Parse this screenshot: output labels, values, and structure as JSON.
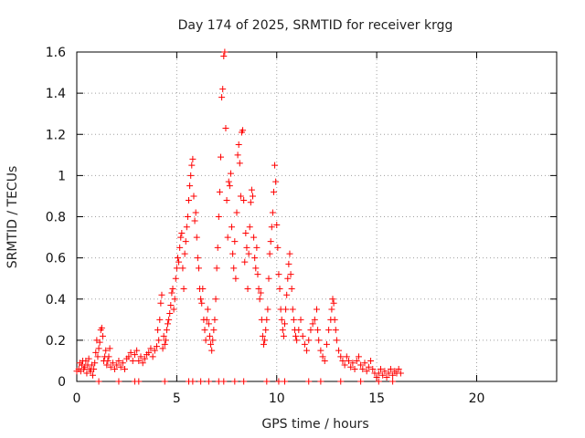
{
  "chart_data": {
    "type": "scatter",
    "title": "Day 174 of 2025, SRMTID for receiver krgg",
    "xlabel": "GPS time / hours",
    "ylabel": "SRMTID / TECUs",
    "xlim": [
      0,
      24
    ],
    "ylim": [
      0,
      1.6
    ],
    "xticks": [
      0,
      5,
      10,
      15,
      20
    ],
    "yticks": [
      0,
      0.2,
      0.4,
      0.6,
      0.8,
      1,
      1.2,
      1.4,
      1.6
    ],
    "xtick_labels": [
      "0",
      "5",
      "10",
      "15",
      "20"
    ],
    "ytick_labels": [
      "0",
      "0.2",
      "0.4",
      "0.6",
      "0.8",
      "1",
      "1.2",
      "1.4",
      "1.6"
    ],
    "grid": true,
    "marker": "+",
    "marker_color": "#ff0000",
    "series": [
      {
        "name": "SRMTID",
        "points": [
          [
            0.0,
            0.05
          ],
          [
            0.1,
            0.06
          ],
          [
            0.15,
            0.09
          ],
          [
            0.2,
            0.05
          ],
          [
            0.25,
            0.08
          ],
          [
            0.3,
            0.1
          ],
          [
            0.35,
            0.06
          ],
          [
            0.4,
            0.07
          ],
          [
            0.45,
            0.1
          ],
          [
            0.5,
            0.04
          ],
          [
            0.55,
            0.08
          ],
          [
            0.6,
            0.11
          ],
          [
            0.65,
            0.06
          ],
          [
            0.7,
            0.05
          ],
          [
            0.75,
            0.08
          ],
          [
            0.8,
            0.03
          ],
          [
            0.85,
            0.06
          ],
          [
            0.9,
            0.09
          ],
          [
            0.95,
            0.14
          ],
          [
            1.0,
            0.2
          ],
          [
            1.05,
            0.12
          ],
          [
            1.1,
            0.16
          ],
          [
            1.15,
            0.19
          ],
          [
            1.2,
            0.25
          ],
          [
            1.25,
            0.26
          ],
          [
            1.3,
            0.22
          ],
          [
            1.35,
            0.1
          ],
          [
            1.4,
            0.12
          ],
          [
            1.45,
            0.15
          ],
          [
            1.5,
            0.08
          ],
          [
            1.55,
            0.1
          ],
          [
            1.6,
            0.12
          ],
          [
            1.65,
            0.16
          ],
          [
            1.7,
            0.07
          ],
          [
            1.8,
            0.09
          ],
          [
            1.9,
            0.06
          ],
          [
            2.0,
            0.08
          ],
          [
            2.1,
            0.1
          ],
          [
            2.2,
            0.07
          ],
          [
            2.3,
            0.09
          ],
          [
            2.4,
            0.06
          ],
          [
            2.5,
            0.11
          ],
          [
            2.6,
            0.12
          ],
          [
            2.7,
            0.14
          ],
          [
            2.8,
            0.1
          ],
          [
            2.9,
            0.13
          ],
          [
            3.0,
            0.15
          ],
          [
            3.1,
            0.1
          ],
          [
            3.2,
            0.12
          ],
          [
            3.3,
            0.09
          ],
          [
            3.4,
            0.11
          ],
          [
            3.5,
            0.13
          ],
          [
            3.6,
            0.14
          ],
          [
            3.7,
            0.16
          ],
          [
            3.8,
            0.12
          ],
          [
            3.9,
            0.15
          ],
          [
            4.0,
            0.17
          ],
          [
            4.05,
            0.25
          ],
          [
            4.1,
            0.2
          ],
          [
            4.15,
            0.3
          ],
          [
            4.2,
            0.38
          ],
          [
            4.25,
            0.42
          ],
          [
            4.3,
            0.16
          ],
          [
            4.35,
            0.22
          ],
          [
            4.4,
            0.18
          ],
          [
            4.45,
            0.2
          ],
          [
            4.5,
            0.25
          ],
          [
            4.55,
            0.28
          ],
          [
            4.6,
            0.3
          ],
          [
            4.65,
            0.33
          ],
          [
            4.7,
            0.37
          ],
          [
            4.75,
            0.43
          ],
          [
            4.8,
            0.45
          ],
          [
            4.85,
            0.35
          ],
          [
            4.9,
            0.4
          ],
          [
            4.95,
            0.5
          ],
          [
            5.0,
            0.55
          ],
          [
            5.05,
            0.6
          ],
          [
            5.1,
            0.58
          ],
          [
            5.15,
            0.65
          ],
          [
            5.2,
            0.7
          ],
          [
            5.25,
            0.72
          ],
          [
            5.3,
            0.55
          ],
          [
            5.35,
            0.45
          ],
          [
            5.4,
            0.62
          ],
          [
            5.45,
            0.68
          ],
          [
            5.5,
            0.75
          ],
          [
            5.55,
            0.8
          ],
          [
            5.6,
            0.88
          ],
          [
            5.65,
            0.95
          ],
          [
            5.7,
            1.0
          ],
          [
            5.75,
            1.05
          ],
          [
            5.8,
            1.08
          ],
          [
            5.85,
            0.9
          ],
          [
            5.9,
            0.78
          ],
          [
            5.95,
            0.82
          ],
          [
            6.0,
            0.7
          ],
          [
            6.05,
            0.6
          ],
          [
            6.1,
            0.55
          ],
          [
            6.15,
            0.45
          ],
          [
            6.2,
            0.4
          ],
          [
            6.25,
            0.38
          ],
          [
            6.3,
            0.45
          ],
          [
            6.35,
            0.3
          ],
          [
            6.4,
            0.25
          ],
          [
            6.45,
            0.2
          ],
          [
            6.5,
            0.3
          ],
          [
            6.55,
            0.35
          ],
          [
            6.6,
            0.28
          ],
          [
            6.65,
            0.22
          ],
          [
            6.7,
            0.18
          ],
          [
            6.75,
            0.15
          ],
          [
            6.8,
            0.2
          ],
          [
            6.85,
            0.25
          ],
          [
            6.9,
            0.3
          ],
          [
            6.95,
            0.4
          ],
          [
            7.0,
            0.55
          ],
          [
            7.05,
            0.65
          ],
          [
            7.1,
            0.8
          ],
          [
            7.15,
            0.92
          ],
          [
            7.2,
            1.09
          ],
          [
            7.25,
            1.38
          ],
          [
            7.3,
            1.42
          ],
          [
            7.35,
            1.58
          ],
          [
            7.4,
            1.6
          ],
          [
            7.45,
            1.23
          ],
          [
            7.5,
            0.88
          ],
          [
            7.55,
            0.7
          ],
          [
            7.6,
            0.97
          ],
          [
            7.65,
            0.95
          ],
          [
            7.7,
            1.01
          ],
          [
            7.75,
            0.75
          ],
          [
            7.8,
            0.62
          ],
          [
            7.85,
            0.55
          ],
          [
            7.9,
            0.68
          ],
          [
            7.95,
            0.5
          ],
          [
            8.0,
            0.82
          ],
          [
            8.05,
            1.1
          ],
          [
            8.1,
            1.15
          ],
          [
            8.15,
            1.06
          ],
          [
            8.2,
            0.9
          ],
          [
            8.25,
            1.21
          ],
          [
            8.3,
            1.22
          ],
          [
            8.35,
            0.88
          ],
          [
            8.4,
            0.58
          ],
          [
            8.45,
            0.72
          ],
          [
            8.5,
            0.65
          ],
          [
            8.55,
            0.45
          ],
          [
            8.6,
            0.62
          ],
          [
            8.65,
            0.75
          ],
          [
            8.7,
            0.87
          ],
          [
            8.75,
            0.93
          ],
          [
            8.8,
            0.9
          ],
          [
            8.85,
            0.7
          ],
          [
            8.9,
            0.6
          ],
          [
            8.95,
            0.55
          ],
          [
            9.0,
            0.65
          ],
          [
            9.05,
            0.52
          ],
          [
            9.1,
            0.45
          ],
          [
            9.15,
            0.4
          ],
          [
            9.2,
            0.43
          ],
          [
            9.25,
            0.3
          ],
          [
            9.3,
            0.22
          ],
          [
            9.35,
            0.18
          ],
          [
            9.4,
            0.2
          ],
          [
            9.45,
            0.25
          ],
          [
            9.5,
            0.3
          ],
          [
            9.55,
            0.35
          ],
          [
            9.6,
            0.5
          ],
          [
            9.65,
            0.62
          ],
          [
            9.7,
            0.68
          ],
          [
            9.75,
            0.75
          ],
          [
            9.8,
            0.82
          ],
          [
            9.85,
            0.92
          ],
          [
            9.9,
            1.05
          ],
          [
            9.95,
            0.97
          ],
          [
            10.0,
            0.76
          ],
          [
            10.05,
            0.65
          ],
          [
            10.1,
            0.52
          ],
          [
            10.15,
            0.45
          ],
          [
            10.2,
            0.35
          ],
          [
            10.25,
            0.3
          ],
          [
            10.3,
            0.25
          ],
          [
            10.35,
            0.22
          ],
          [
            10.4,
            0.28
          ],
          [
            10.45,
            0.35
          ],
          [
            10.5,
            0.42
          ],
          [
            10.55,
            0.5
          ],
          [
            10.6,
            0.57
          ],
          [
            10.65,
            0.62
          ],
          [
            10.7,
            0.52
          ],
          [
            10.75,
            0.45
          ],
          [
            10.8,
            0.35
          ],
          [
            10.85,
            0.3
          ],
          [
            10.9,
            0.25
          ],
          [
            10.95,
            0.22
          ],
          [
            11.0,
            0.2
          ],
          [
            11.1,
            0.25
          ],
          [
            11.2,
            0.3
          ],
          [
            11.3,
            0.22
          ],
          [
            11.4,
            0.18
          ],
          [
            11.5,
            0.15
          ],
          [
            11.6,
            0.2
          ],
          [
            11.7,
            0.25
          ],
          [
            11.8,
            0.28
          ],
          [
            11.9,
            0.3
          ],
          [
            12.0,
            0.35
          ],
          [
            12.05,
            0.25
          ],
          [
            12.1,
            0.2
          ],
          [
            12.2,
            0.15
          ],
          [
            12.3,
            0.12
          ],
          [
            12.4,
            0.1
          ],
          [
            12.5,
            0.18
          ],
          [
            12.6,
            0.25
          ],
          [
            12.7,
            0.3
          ],
          [
            12.75,
            0.35
          ],
          [
            12.8,
            0.4
          ],
          [
            12.85,
            0.38
          ],
          [
            12.9,
            0.3
          ],
          [
            12.95,
            0.25
          ],
          [
            13.0,
            0.2
          ],
          [
            13.1,
            0.15
          ],
          [
            13.2,
            0.12
          ],
          [
            13.3,
            0.1
          ],
          [
            13.4,
            0.08
          ],
          [
            13.5,
            0.12
          ],
          [
            13.6,
            0.1
          ],
          [
            13.7,
            0.07
          ],
          [
            13.8,
            0.09
          ],
          [
            13.9,
            0.06
          ],
          [
            14.0,
            0.1
          ],
          [
            14.1,
            0.12
          ],
          [
            14.2,
            0.08
          ],
          [
            14.3,
            0.06
          ],
          [
            14.4,
            0.09
          ],
          [
            14.5,
            0.05
          ],
          [
            14.6,
            0.07
          ],
          [
            14.7,
            0.1
          ],
          [
            14.8,
            0.06
          ],
          [
            14.9,
            0.04
          ],
          [
            15.0,
            0.02
          ],
          [
            15.1,
            0.04
          ],
          [
            15.2,
            0.06
          ],
          [
            15.3,
            0.03
          ],
          [
            15.4,
            0.05
          ],
          [
            15.5,
            0.02
          ],
          [
            15.6,
            0.04
          ],
          [
            15.7,
            0.06
          ],
          [
            15.8,
            0.03
          ],
          [
            15.9,
            0.05
          ],
          [
            16.0,
            0.04
          ],
          [
            16.1,
            0.06
          ],
          [
            16.2,
            0.04
          ],
          [
            1.1,
            0.0
          ],
          [
            2.1,
            0.0
          ],
          [
            2.9,
            0.0
          ],
          [
            3.1,
            0.0
          ],
          [
            4.4,
            0.0
          ],
          [
            5.6,
            0.0
          ],
          [
            5.8,
            0.0
          ],
          [
            6.2,
            0.0
          ],
          [
            6.6,
            0.0
          ],
          [
            7.1,
            0.0
          ],
          [
            7.35,
            0.0
          ],
          [
            7.9,
            0.0
          ],
          [
            8.35,
            0.0
          ],
          [
            9.5,
            0.0
          ],
          [
            10.1,
            0.0
          ],
          [
            10.4,
            0.0
          ],
          [
            11.6,
            0.0
          ],
          [
            12.2,
            0.0
          ],
          [
            13.2,
            0.0
          ],
          [
            14.2,
            0.0
          ],
          [
            15.1,
            0.0
          ],
          [
            15.8,
            0.0
          ]
        ]
      }
    ]
  }
}
